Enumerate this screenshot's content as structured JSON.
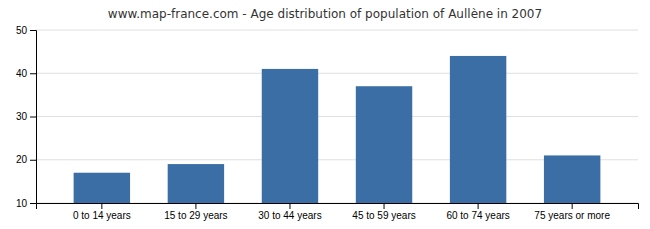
{
  "chart_data": {
    "type": "bar",
    "title": "www.map-france.com - Age distribution of population of Aullène in 2007",
    "categories": [
      "0 to 14 years",
      "15 to 29 years",
      "30 to 44 years",
      "45 to 59 years",
      "60 to 74 years",
      "75 years or more"
    ],
    "values": [
      17,
      19,
      41,
      37,
      44,
      21
    ],
    "color": "#3a6ea5",
    "ylim": [
      10,
      50
    ],
    "yticks": [
      10,
      20,
      30,
      40,
      50
    ],
    "grid": true
  }
}
